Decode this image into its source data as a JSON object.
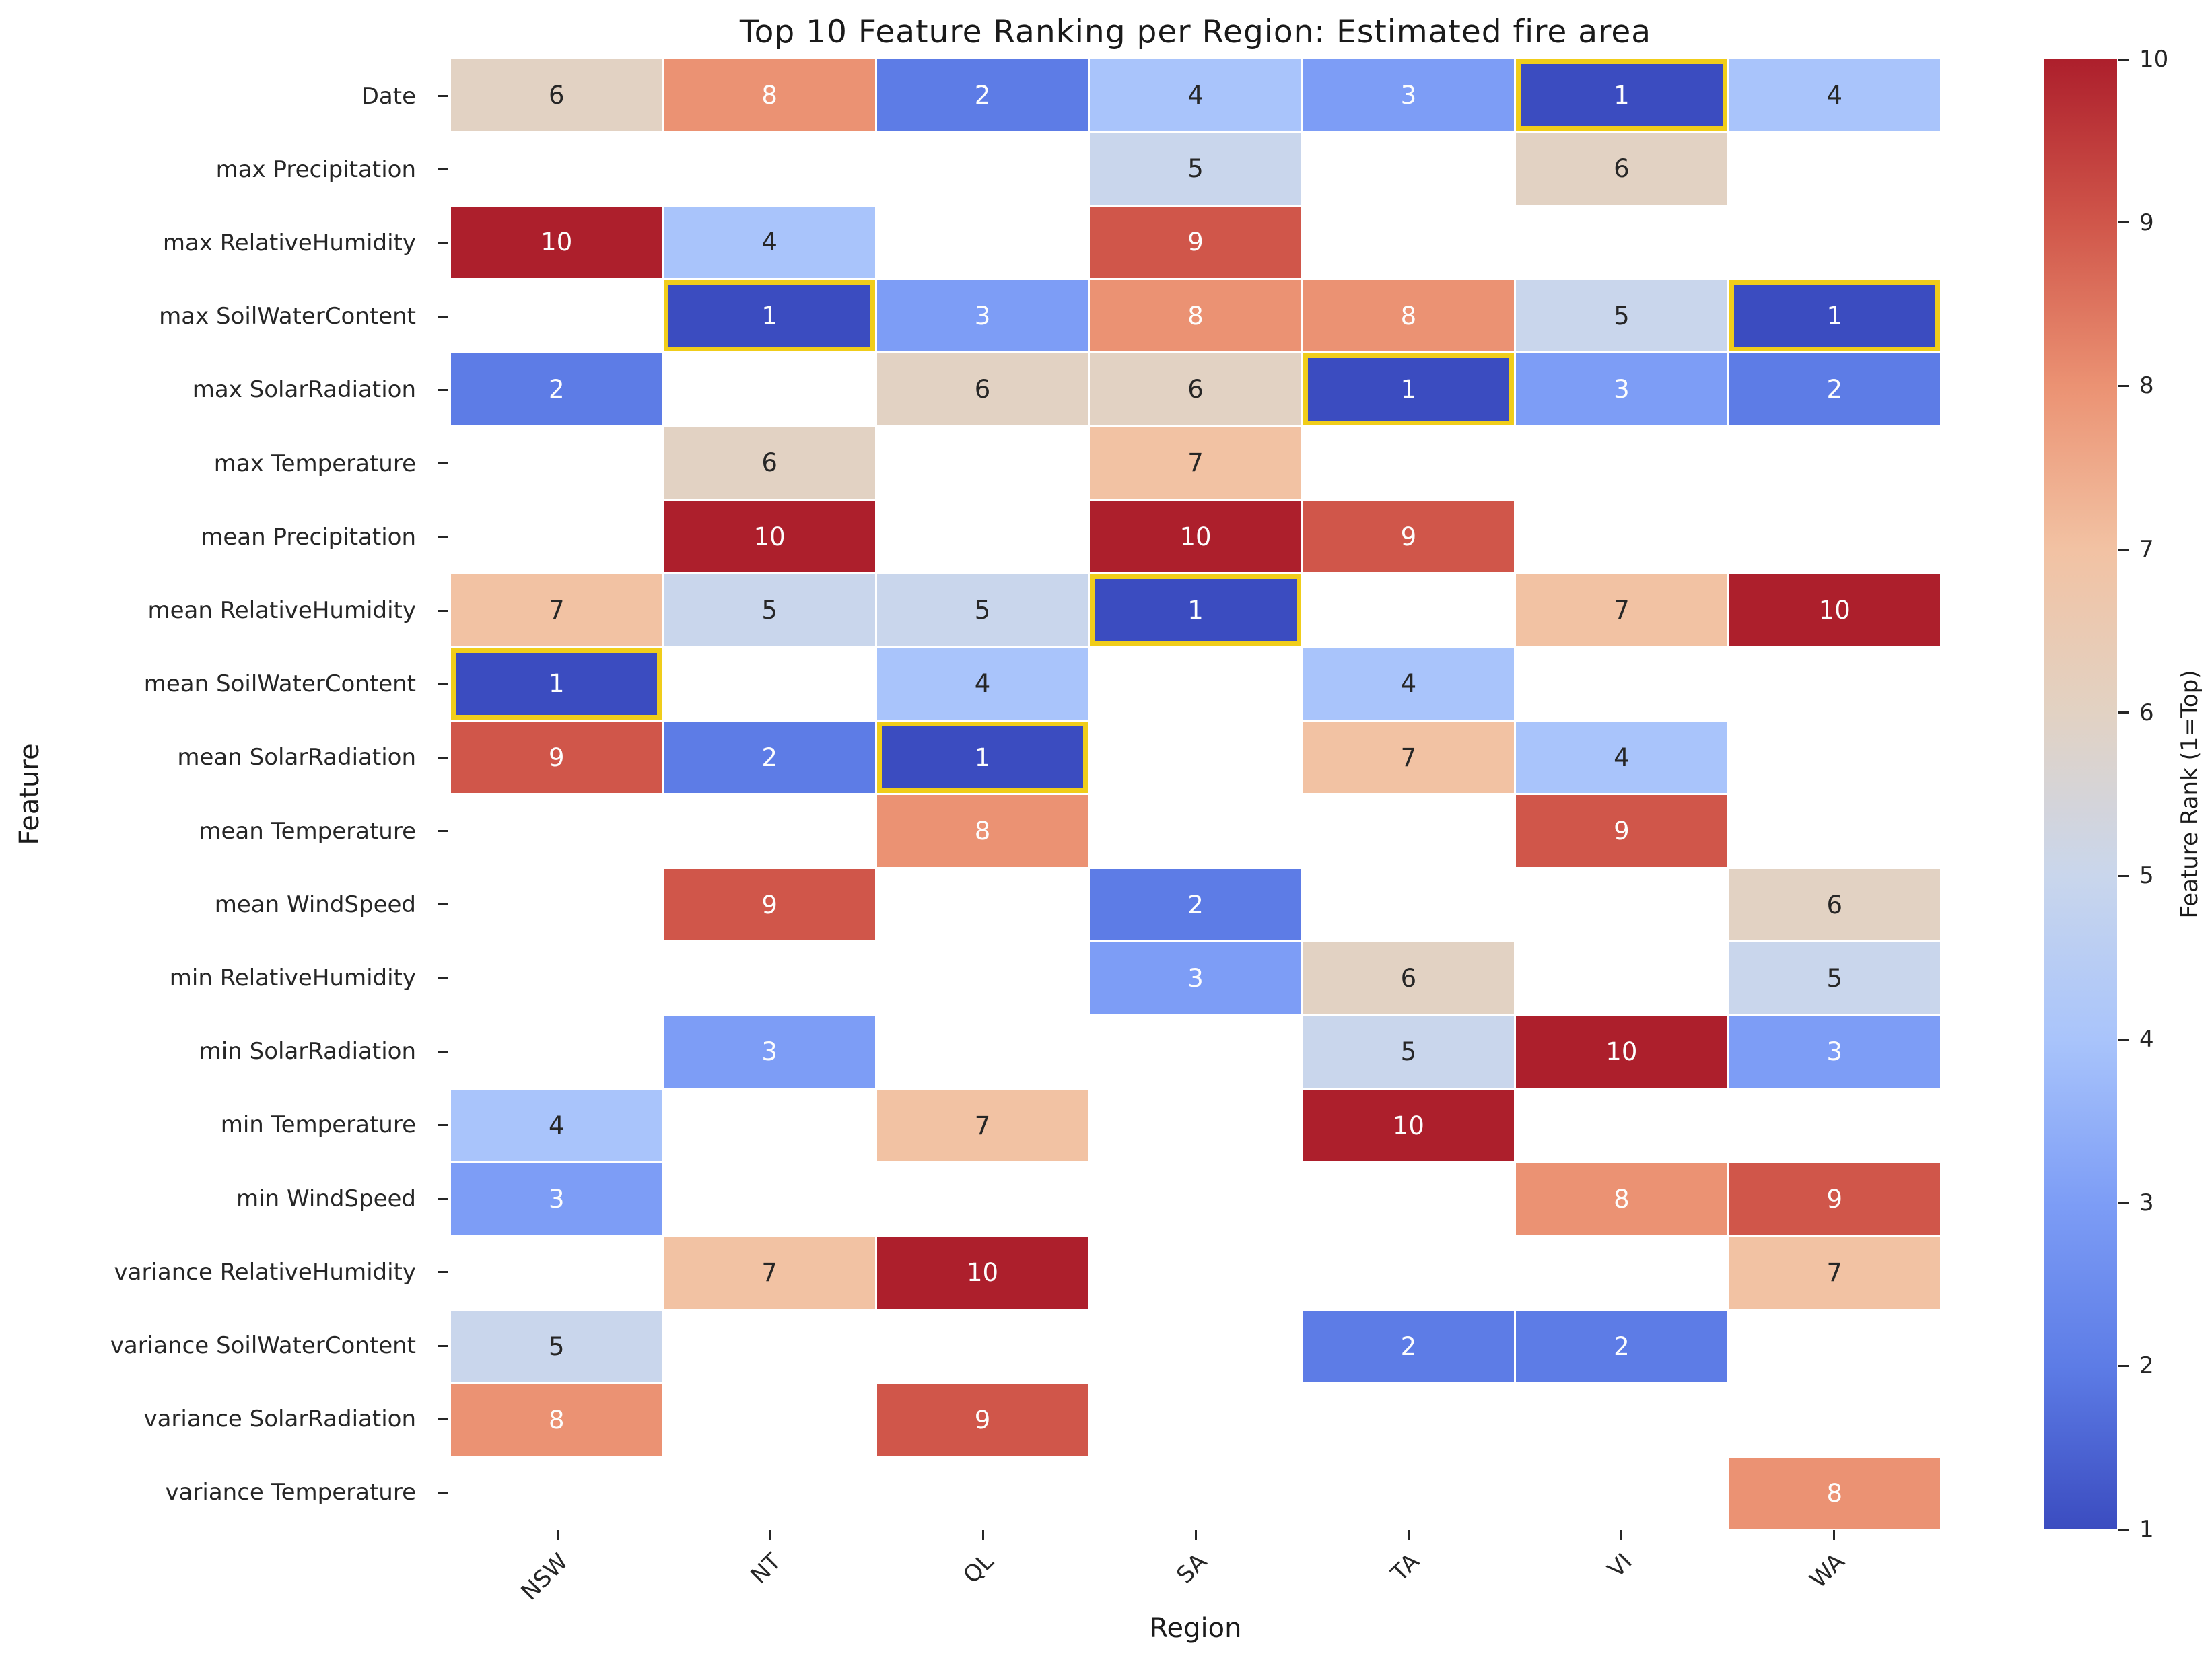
{
  "title": "Top 10 Feature Ranking per Region: Estimated fire area",
  "axes": {
    "xlabel": "Region",
    "ylabel": "Feature"
  },
  "colorbar": {
    "label": "Feature Rank (1=Top)",
    "ticks": [
      10,
      9,
      8,
      7,
      6,
      5,
      4,
      3,
      2,
      1
    ],
    "min": 1,
    "max": 10
  },
  "chart_data": {
    "type": "heatmap",
    "title": "Top 10 Feature Ranking per Region: Estimated fire area",
    "xlabel": "Region",
    "ylabel": "Feature",
    "colormap": "coolwarm",
    "value_range": [
      1,
      10
    ],
    "colorbar_label": "Feature Rank (1=Top)",
    "legend_position": "right",
    "columns": [
      "NSW",
      "NT",
      "QL",
      "SA",
      "TA",
      "VI",
      "WA"
    ],
    "rows": [
      "Date",
      "max Precipitation",
      "max RelativeHumidity",
      "max SoilWaterContent",
      "max SolarRadiation",
      "max Temperature",
      "mean Precipitation",
      "mean RelativeHumidity",
      "mean SoilWaterContent",
      "mean SolarRadiation",
      "mean Temperature",
      "mean WindSpeed",
      "min RelativeHumidity",
      "min SolarRadiation",
      "min Temperature",
      "min WindSpeed",
      "variance RelativeHumidity",
      "variance SoilWaterContent",
      "variance SolarRadiation",
      "variance Temperature"
    ],
    "values": [
      [
        6,
        8,
        2,
        4,
        3,
        1,
        4
      ],
      [
        null,
        null,
        null,
        5,
        null,
        6,
        null
      ],
      [
        10,
        4,
        null,
        9,
        null,
        null,
        null
      ],
      [
        null,
        1,
        3,
        8,
        8,
        5,
        1
      ],
      [
        2,
        null,
        6,
        6,
        1,
        3,
        2
      ],
      [
        null,
        6,
        null,
        7,
        null,
        null,
        null
      ],
      [
        null,
        10,
        null,
        10,
        9,
        null,
        null
      ],
      [
        7,
        5,
        5,
        1,
        null,
        7,
        10
      ],
      [
        1,
        null,
        4,
        null,
        4,
        null,
        null
      ],
      [
        9,
        2,
        1,
        null,
        7,
        4,
        null
      ],
      [
        null,
        null,
        8,
        null,
        null,
        9,
        null
      ],
      [
        null,
        9,
        null,
        2,
        null,
        null,
        6
      ],
      [
        null,
        null,
        null,
        3,
        6,
        null,
        5
      ],
      [
        null,
        3,
        null,
        null,
        5,
        10,
        3
      ],
      [
        4,
        null,
        7,
        null,
        10,
        null,
        null
      ],
      [
        3,
        null,
        null,
        null,
        null,
        8,
        9
      ],
      [
        null,
        7,
        10,
        null,
        null,
        null,
        7
      ],
      [
        5,
        null,
        null,
        null,
        2,
        2,
        null
      ],
      [
        8,
        null,
        9,
        null,
        null,
        null,
        null
      ],
      [
        null,
        null,
        null,
        null,
        null,
        null,
        8
      ]
    ],
    "highlighted_cells": [
      {
        "row": "Date",
        "column": "VI",
        "value": 1,
        "row_index": 0,
        "col_index": 5
      },
      {
        "row": "max SoilWaterContent",
        "column": "NT",
        "value": 1,
        "row_index": 3,
        "col_index": 1
      },
      {
        "row": "max SoilWaterContent",
        "column": "WA",
        "value": 1,
        "row_index": 3,
        "col_index": 6
      },
      {
        "row": "max SolarRadiation",
        "column": "TA",
        "value": 1,
        "row_index": 4,
        "col_index": 4
      },
      {
        "row": "mean RelativeHumidity",
        "column": "SA",
        "value": 1,
        "row_index": 7,
        "col_index": 3
      },
      {
        "row": "mean SoilWaterContent",
        "column": "NSW",
        "value": 1,
        "row_index": 8,
        "col_index": 0
      },
      {
        "row": "mean SolarRadiation",
        "column": "QL",
        "value": 1,
        "row_index": 9,
        "col_index": 2
      }
    ]
  },
  "colors": {
    "value_colors": {
      "1": "#3b4cc0",
      "2": "#5d7ce6",
      "3": "#7d9df6",
      "4": "#a9c4fb",
      "5": "#c9d6ec",
      "6": "#e2d2c3",
      "7": "#f2c2a3",
      "8": "#eb9273",
      "9": "#d0564a",
      "10": "#ad1f2c"
    },
    "highlight_border": "#f0cd1a",
    "annotation_dark": "#262626",
    "annotation_light": "#fdfdfd",
    "tick_color": "#262626",
    "background": "#ffffff"
  }
}
